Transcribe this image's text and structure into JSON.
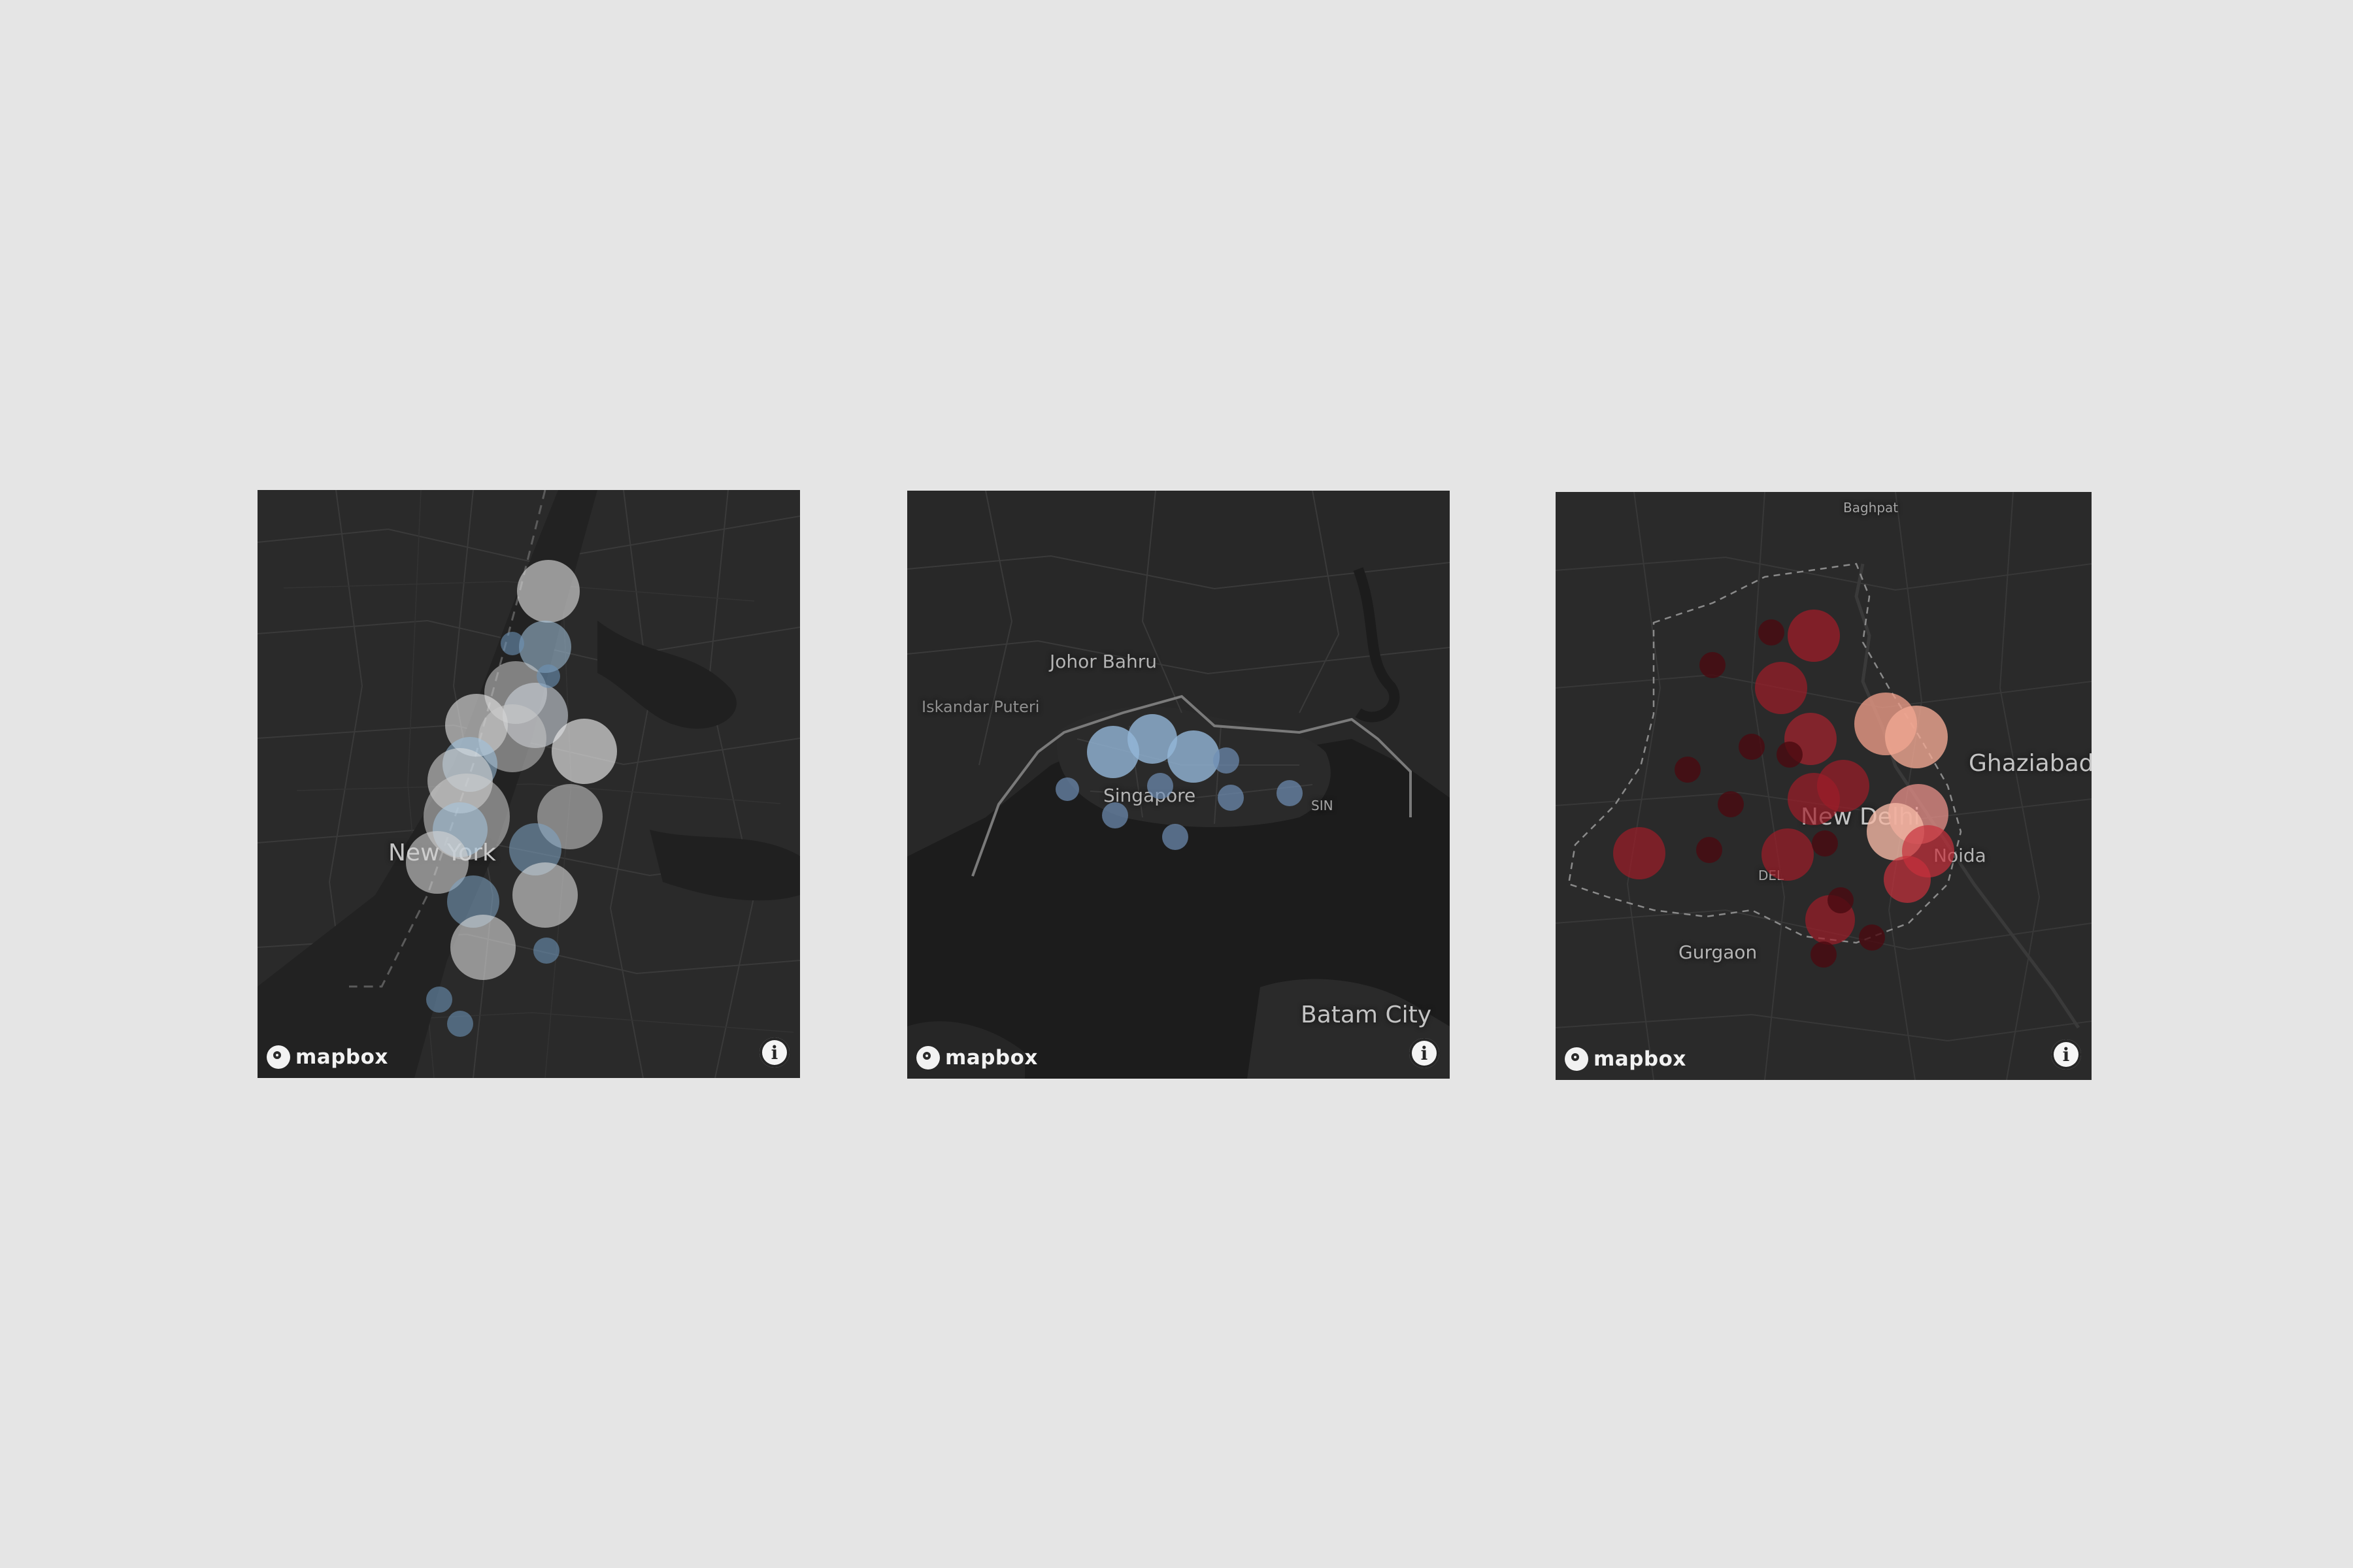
{
  "attribution": {
    "brand": "mapbox",
    "info_glyph": "i"
  },
  "maps": [
    {
      "id": "ny",
      "labels": [
        {
          "text": "New York",
          "size": "lg"
        }
      ],
      "bubbles": [
        {
          "lat": 0.88,
          "r": 48,
          "color": "#d8d8d8",
          "opacity": 0.65
        },
        {
          "r": 44,
          "color": "#a6c6e0",
          "opacity": 0.55
        },
        {
          "r": 52,
          "color": "#d0d0d0",
          "opacity": 0.55
        },
        {
          "r": 50,
          "color": "#cfd6dd",
          "opacity": 0.6
        },
        {
          "r": 46,
          "color": "#e8e8e8",
          "opacity": 0.6
        },
        {
          "r": 52,
          "color": "#c8c8c8",
          "opacity": 0.55
        },
        {
          "r": 50,
          "color": "#ebebeb",
          "opacity": 0.65
        },
        {
          "r": 42,
          "color": "#9fc2e0",
          "opacity": 0.55
        },
        {
          "r": 66,
          "color": "#cfcfcf",
          "opacity": 0.55
        },
        {
          "r": 50,
          "color": "#a8c8e2",
          "opacity": 0.55
        },
        {
          "r": 48,
          "color": "#d8d8d8",
          "opacity": 0.6
        },
        {
          "r": 50,
          "color": "#d0d0d0",
          "opacity": 0.55
        },
        {
          "r": 40,
          "color": "#7fa6c6",
          "opacity": 0.55
        },
        {
          "r": 50,
          "color": "#d4d4d4",
          "opacity": 0.6
        },
        {
          "r": 40,
          "color": "#7fa6c6",
          "opacity": 0.55
        },
        {
          "r": 50,
          "color": "#dcdcdc",
          "opacity": 0.6
        },
        {
          "r": 18,
          "color": "#6d93b6",
          "opacity": 0.6
        },
        {
          "r": 18,
          "color": "#6d93b6",
          "opacity": 0.6
        },
        {
          "r": 18,
          "color": "#6d93b6",
          "opacity": 0.6
        },
        {
          "r": 20,
          "color": "#6d93b6",
          "opacity": 0.6
        },
        {
          "r": 20,
          "color": "#6d93b6",
          "opacity": 0.6
        }
      ]
    },
    {
      "id": "sg",
      "labels": [
        {
          "text": "Johor Bahru",
          "size": "md"
        },
        {
          "text": "Iskandar Puteri",
          "size": "sm"
        },
        {
          "text": "Singapore",
          "size": "md"
        },
        {
          "text": "SIN",
          "size": "xs"
        },
        {
          "text": "Batam City",
          "size": "lg"
        }
      ],
      "bubbles": [
        {
          "r": 40,
          "color": "#93b7d8",
          "opacity": 0.8
        },
        {
          "r": 38,
          "color": "#93b7d8",
          "opacity": 0.8
        },
        {
          "r": 40,
          "color": "#93b7d8",
          "opacity": 0.8
        },
        {
          "r": 18,
          "color": "#6f8fb5",
          "opacity": 0.7
        },
        {
          "r": 20,
          "color": "#6f8fb5",
          "opacity": 0.7
        },
        {
          "r": 20,
          "color": "#6f8fb5",
          "opacity": 0.7
        },
        {
          "r": 20,
          "color": "#6f8fb5",
          "opacity": 0.7
        },
        {
          "r": 20,
          "color": "#6f8fb5",
          "opacity": 0.7
        },
        {
          "r": 20,
          "color": "#6f8fb5",
          "opacity": 0.7
        },
        {
          "r": 20,
          "color": "#6f8fb5",
          "opacity": 0.7
        }
      ]
    },
    {
      "id": "dl",
      "labels": [
        {
          "text": "Baghpat",
          "size": "xs"
        },
        {
          "text": "Ghaziabad",
          "size": "lg"
        },
        {
          "text": "New Delhi",
          "size": "lg"
        },
        {
          "text": "Noida",
          "size": "md"
        },
        {
          "text": "DEL",
          "size": "xs"
        },
        {
          "text": "Gurgaon",
          "size": "md"
        }
      ],
      "bubbles": [
        {
          "r": 40,
          "color": "#9e1c28",
          "opacity": 0.75
        },
        {
          "r": 40,
          "color": "#9e1c28",
          "opacity": 0.7
        },
        {
          "r": 40,
          "color": "#a8222e",
          "opacity": 0.7
        },
        {
          "r": 40,
          "color": "#9e1c28",
          "opacity": 0.7
        },
        {
          "r": 40,
          "color": "#9e1c28",
          "opacity": 0.7
        },
        {
          "r": 40,
          "color": "#9e1c28",
          "opacity": 0.7
        },
        {
          "r": 40,
          "color": "#9e1c28",
          "opacity": 0.7
        },
        {
          "r": 48,
          "color": "#e99a86",
          "opacity": 0.8
        },
        {
          "r": 48,
          "color": "#f0a892",
          "opacity": 0.8
        },
        {
          "r": 46,
          "color": "#e8908a",
          "opacity": 0.75
        },
        {
          "r": 44,
          "color": "#f2b6a4",
          "opacity": 0.8
        },
        {
          "r": 40,
          "color": "#c8303c",
          "opacity": 0.7
        },
        {
          "r": 36,
          "color": "#c8303c",
          "opacity": 0.7
        },
        {
          "r": 20,
          "color": "#4a0a10",
          "opacity": 0.8
        },
        {
          "r": 20,
          "color": "#4a0a10",
          "opacity": 0.8
        },
        {
          "r": 20,
          "color": "#4a0a10",
          "opacity": 0.8
        },
        {
          "r": 20,
          "color": "#4a0a10",
          "opacity": 0.8
        },
        {
          "r": 20,
          "color": "#4a0a10",
          "opacity": 0.8
        },
        {
          "r": 20,
          "color": "#4a0a10",
          "opacity": 0.8
        },
        {
          "r": 20,
          "color": "#4a0a10",
          "opacity": 0.8
        },
        {
          "r": 20,
          "color": "#4a0a10",
          "opacity": 0.8
        },
        {
          "r": 20,
          "color": "#4a0a10",
          "opacity": 0.8
        },
        {
          "r": 20,
          "color": "#4a0a10",
          "opacity": 0.8
        },
        {
          "r": 20,
          "color": "#4a0a10",
          "opacity": 0.8
        },
        {
          "r": 20,
          "color": "#4a0a10",
          "opacity": 0.8
        }
      ]
    }
  ]
}
